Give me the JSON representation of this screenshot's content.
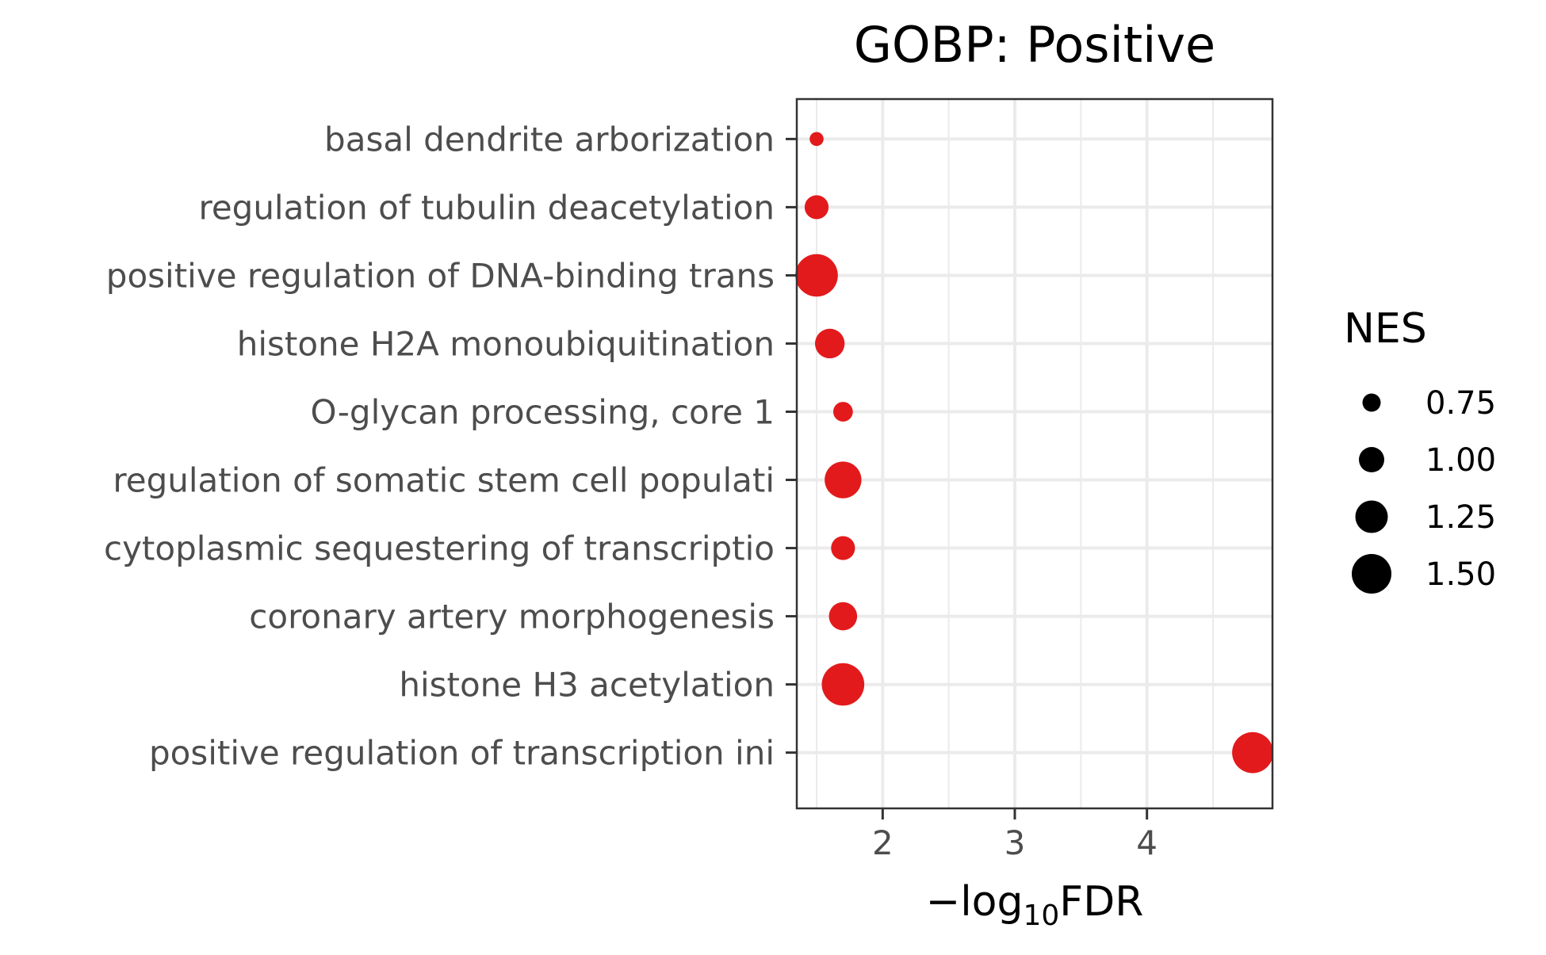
{
  "chart_data": {
    "type": "scatter",
    "title": "GOBP: Positive",
    "xlabel_prefix": "−log",
    "xlabel_sub": "10",
    "xlabel_suffix": "FDR",
    "ylabel": "",
    "xlim": [
      1.35,
      4.95
    ],
    "x_ticks": [
      2,
      3,
      4
    ],
    "grid": true,
    "legend_placement": "right",
    "point_color": "#e31a1c",
    "categories": [
      "basal dendrite arborization",
      "regulation of tubulin deacetylation",
      "positive regulation of DNA-binding trans",
      "histone H2A monoubiquitination",
      "O-glycan processing, core 1",
      "regulation of somatic stem cell populati",
      "cytoplasmic sequestering of transcriptio",
      "coronary artery morphogenesis",
      "histone H3 acetylation",
      "positive regulation of transcription ini"
    ],
    "series": [
      {
        "x": [
          1.5,
          1.5,
          1.5,
          1.6,
          1.7,
          1.7,
          1.7,
          1.7,
          1.7,
          4.8
        ],
        "size": [
          0.6,
          0.95,
          1.6,
          1.15,
          0.8,
          1.4,
          0.95,
          1.1,
          1.6,
          1.55
        ]
      }
    ],
    "legend": {
      "title": "NES",
      "entries": [
        {
          "label": "0.75",
          "value": 0.75
        },
        {
          "label": "1.00",
          "value": 1.0
        },
        {
          "label": "1.25",
          "value": 1.25
        },
        {
          "label": "1.50",
          "value": 1.5
        }
      ]
    }
  }
}
